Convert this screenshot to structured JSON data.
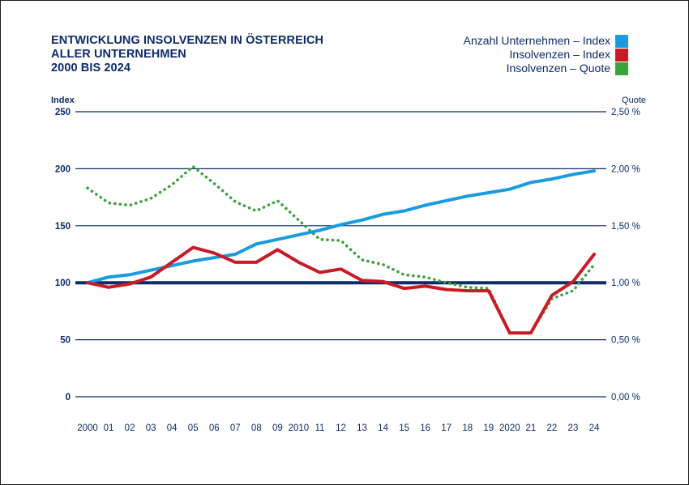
{
  "chart_data": {
    "type": "line",
    "title_lines": [
      "ENTWICKLUNG INSOLVENZEN IN ÖSTERREICH",
      "ALLER UNTERNEHMEN",
      "2000 BIS 2024"
    ],
    "y_left_label": "Index",
    "y_right_label": "Quote",
    "y_left_ticks": [
      "250",
      "200",
      "150",
      "100",
      "50",
      "0"
    ],
    "y_right_ticks": [
      "2,50 %",
      "2,00 %",
      "1,50 %",
      "1,00 %",
      "0,50 %",
      "0,00 %"
    ],
    "ylim_left": [
      0,
      250
    ],
    "ylim_right": [
      0,
      2.5
    ],
    "x_labels": [
      "2000",
      "01",
      "02",
      "03",
      "04",
      "05",
      "06",
      "07",
      "08",
      "09",
      "2010",
      "11",
      "12",
      "13",
      "14",
      "15",
      "16",
      "17",
      "18",
      "19",
      "2020",
      "21",
      "22",
      "23",
      "24"
    ],
    "series": [
      {
        "name": "Anzahl Unternehmen – Index",
        "axis": "left",
        "color": "#1a9be0",
        "style": "solid",
        "values": [
          100,
          105,
          107,
          111,
          115,
          119,
          122,
          125,
          134,
          138,
          142,
          146,
          151,
          155,
          160,
          163,
          168,
          172,
          176,
          179,
          182,
          188,
          191,
          195,
          198
        ]
      },
      {
        "name": "Insolvenzen – Index",
        "axis": "left",
        "color": "#c81b25",
        "style": "solid",
        "values": [
          100,
          96,
          99,
          105,
          118,
          131,
          126,
          118,
          118,
          129,
          118,
          109,
          112,
          102,
          101,
          95,
          97,
          94,
          93,
          93,
          56,
          56,
          89,
          101,
          125
        ]
      },
      {
        "name": "Insolvenzen – Quote",
        "axis": "right",
        "color": "#3aa33a",
        "style": "dotted",
        "values": [
          1.83,
          1.7,
          1.68,
          1.74,
          1.86,
          2.02,
          1.87,
          1.71,
          1.63,
          1.72,
          1.55,
          1.38,
          1.37,
          1.2,
          1.16,
          1.07,
          1.05,
          1.0,
          0.96,
          0.95,
          0.56,
          0.56,
          0.86,
          0.93,
          1.16
        ]
      }
    ],
    "reference_line": {
      "axis": "left",
      "value": 100,
      "color": "#0d2a6b"
    },
    "grid": true,
    "legend_position": "top-right"
  }
}
